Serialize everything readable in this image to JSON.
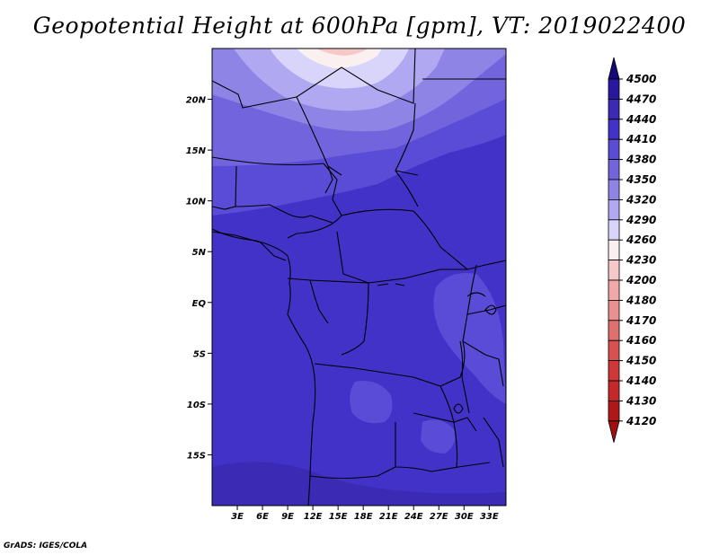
{
  "title": "Geopotential Height at 600hPa [gpm], VT: 2019022400",
  "credit": "GrADS: IGES/COLA",
  "map": {
    "lon_range": [
      0,
      35
    ],
    "lat_range": [
      -20,
      25
    ],
    "lon_ticks": [
      {
        "value": 3,
        "label": "3E"
      },
      {
        "value": 6,
        "label": "6E"
      },
      {
        "value": 9,
        "label": "9E"
      },
      {
        "value": 12,
        "label": "12E"
      },
      {
        "value": 15,
        "label": "15E"
      },
      {
        "value": 18,
        "label": "18E"
      },
      {
        "value": 21,
        "label": "21E"
      },
      {
        "value": 24,
        "label": "24E"
      },
      {
        "value": 27,
        "label": "27E"
      },
      {
        "value": 30,
        "label": "30E"
      },
      {
        "value": 33,
        "label": "33E"
      }
    ],
    "lat_ticks": [
      {
        "value": 20,
        "label": "20N"
      },
      {
        "value": 15,
        "label": "15N"
      },
      {
        "value": 10,
        "label": "10N"
      },
      {
        "value": 5,
        "label": "5N"
      },
      {
        "value": 0,
        "label": "EQ"
      },
      {
        "value": -5,
        "label": "5S"
      },
      {
        "value": -10,
        "label": "10S"
      },
      {
        "value": -15,
        "label": "15S"
      }
    ]
  },
  "colorbar": {
    "levels": [
      {
        "label": "4500",
        "color": "#20108c"
      },
      {
        "label": "4470",
        "color": "#2818a0"
      },
      {
        "label": "4440",
        "color": "#3a2ab4"
      },
      {
        "label": "4410",
        "color": "#4232c8"
      },
      {
        "label": "4380",
        "color": "#5a4cd6"
      },
      {
        "label": "4350",
        "color": "#7264dc"
      },
      {
        "label": "4320",
        "color": "#8e84e6"
      },
      {
        "label": "4290",
        "color": "#b0a8f0"
      },
      {
        "label": "4260",
        "color": "#d8d4fa"
      },
      {
        "label": "4230",
        "color": "#fbf0f0"
      },
      {
        "label": "4200",
        "color": "#f6c8c8"
      },
      {
        "label": "4180",
        "color": "#f0a8a8"
      },
      {
        "label": "4170",
        "color": "#ea9090"
      },
      {
        "label": "4160",
        "color": "#e07070"
      },
      {
        "label": "4150",
        "color": "#d85050"
      },
      {
        "label": "4140",
        "color": "#d03838"
      },
      {
        "label": "4130",
        "color": "#c42828"
      },
      {
        "label": "4120",
        "color": "#b01818"
      }
    ],
    "top_arrow_color": "#140a78",
    "bottom_arrow_color": "#a01010"
  }
}
